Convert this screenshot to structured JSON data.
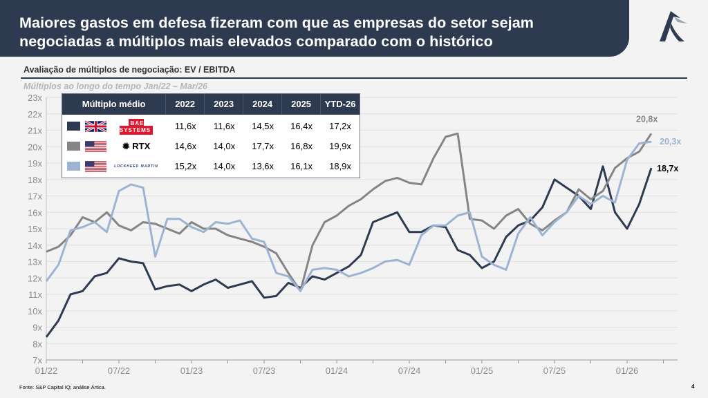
{
  "header": {
    "title_line1": "Maiores gastos em defesa fizeram com que as empresas do setor sejam",
    "title_line2": "negociadas a múltiplos mais elevados comparado com o histórico"
  },
  "subtitle": "Avaliação de múltiplos de negociação: EV / EBITDA",
  "period": "Múltiplos ao longo do tempo Jan/22 – Mar/26",
  "table": {
    "headers": [
      "Múltiplo médio",
      "2022",
      "2023",
      "2024",
      "2025",
      "YTD-26"
    ],
    "rows": [
      {
        "company": "BAE SYSTEMS",
        "flag": "uk-flag",
        "values": [
          "11,6x",
          "11,6x",
          "14,5x",
          "16,4x",
          "17,2x"
        ]
      },
      {
        "company": "RTX",
        "flag": "us-flag",
        "values": [
          "14,6x",
          "14,0x",
          "17,7x",
          "16,8x",
          "19,9x"
        ]
      },
      {
        "company": "LOCKHEED MARTIN",
        "flag": "us-flag",
        "values": [
          "15,2x",
          "14,0x",
          "13,6x",
          "16,1x",
          "18,9x"
        ]
      }
    ]
  },
  "chart_data": {
    "type": "line",
    "title": "Avaliação de múltiplos de negociação: EV / EBITDA",
    "subtitle": "Múltiplos ao longo do tempo Jan/22 – Mar/26",
    "ylim": [
      7,
      23
    ],
    "yticks": [
      "7x",
      "8x",
      "9x",
      "10x",
      "11x",
      "12x",
      "13x",
      "14x",
      "15x",
      "16x",
      "17x",
      "18x",
      "19x",
      "20x",
      "21x",
      "22x",
      "23x"
    ],
    "xticks": [
      "01/22",
      "07/22",
      "01/23",
      "07/23",
      "01/24",
      "07/24",
      "01/25",
      "07/25",
      "01/26"
    ],
    "grid": true,
    "x": [
      "01/22",
      "02/22",
      "03/22",
      "04/22",
      "05/22",
      "06/22",
      "07/22",
      "08/22",
      "09/22",
      "10/22",
      "11/22",
      "12/22",
      "01/23",
      "02/23",
      "03/23",
      "04/23",
      "05/23",
      "06/23",
      "07/23",
      "08/23",
      "09/23",
      "10/23",
      "11/23",
      "12/23",
      "01/24",
      "02/24",
      "03/24",
      "04/24",
      "05/24",
      "06/24",
      "07/24",
      "08/24",
      "09/24",
      "10/24",
      "11/24",
      "12/24",
      "01/25",
      "02/25",
      "03/25",
      "04/25",
      "05/25",
      "06/25",
      "07/25",
      "08/25",
      "09/25",
      "10/25",
      "11/25",
      "12/25",
      "01/26",
      "02/26",
      "03/26"
    ],
    "series": [
      {
        "name": "BAE SYSTEMS",
        "color": "#2e3a50",
        "end_label": "18,7x",
        "values": [
          8.4,
          9.4,
          11.0,
          11.2,
          12.1,
          12.3,
          13.2,
          13.0,
          12.9,
          11.3,
          11.5,
          11.6,
          11.2,
          11.6,
          11.9,
          11.4,
          11.6,
          11.8,
          10.8,
          10.9,
          11.7,
          11.4,
          12.1,
          11.9,
          12.3,
          12.7,
          13.4,
          15.4,
          15.7,
          16.0,
          14.8,
          14.8,
          15.2,
          15.1,
          13.7,
          13.4,
          12.6,
          13.0,
          14.5,
          15.2,
          15.5,
          16.3,
          18.0,
          17.5,
          17.0,
          16.2,
          18.8,
          16.0,
          15.0,
          16.5,
          18.7
        ]
      },
      {
        "name": "RTX",
        "color": "#858585",
        "end_label": "20,8x",
        "values": [
          13.6,
          13.9,
          14.6,
          15.7,
          15.4,
          16.0,
          15.2,
          14.9,
          15.4,
          15.3,
          15.0,
          14.7,
          15.4,
          15.0,
          15.0,
          14.6,
          14.4,
          14.2,
          13.9,
          13.5,
          12.3,
          11.2,
          14.0,
          15.4,
          15.8,
          16.4,
          16.8,
          17.4,
          17.9,
          18.1,
          17.8,
          17.7,
          19.3,
          20.6,
          20.8,
          15.6,
          15.5,
          15.0,
          15.8,
          16.2,
          15.3,
          14.9,
          15.5,
          16.0,
          17.4,
          16.8,
          17.3,
          18.7,
          19.3,
          19.7,
          20.8
        ]
      },
      {
        "name": "LOCKHEED MARTIN",
        "color": "#9db3d4",
        "end_label": "20,3x",
        "values": [
          11.8,
          12.8,
          14.9,
          15.1,
          15.4,
          14.8,
          17.3,
          17.7,
          17.5,
          13.3,
          15.6,
          15.6,
          15.1,
          14.8,
          15.4,
          15.3,
          15.5,
          14.4,
          14.2,
          12.3,
          12.1,
          11.2,
          12.5,
          12.6,
          12.5,
          12.1,
          12.3,
          12.6,
          13.0,
          13.1,
          12.8,
          14.6,
          15.2,
          15.2,
          15.8,
          16.0,
          13.3,
          12.8,
          12.5,
          14.7,
          15.7,
          14.6,
          15.4,
          16.0,
          17.0,
          16.5,
          17.0,
          16.6,
          19.2,
          20.2,
          20.3
        ]
      }
    ]
  },
  "footer": "Fonte: S&P Capital IQ; análise Ártica.",
  "page_number": "4"
}
